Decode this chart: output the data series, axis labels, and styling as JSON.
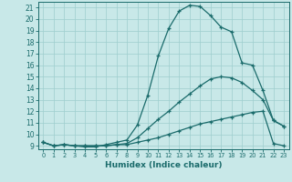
{
  "xlabel": "Humidex (Indice chaleur)",
  "xlim": [
    -0.5,
    23.5
  ],
  "ylim": [
    8.7,
    21.5
  ],
  "yticks": [
    9,
    10,
    11,
    12,
    13,
    14,
    15,
    16,
    17,
    18,
    19,
    20,
    21
  ],
  "xticks": [
    0,
    1,
    2,
    3,
    4,
    5,
    6,
    7,
    8,
    9,
    10,
    11,
    12,
    13,
    14,
    15,
    16,
    17,
    18,
    19,
    20,
    21,
    22,
    23
  ],
  "bg_color": "#c8e8e8",
  "line_color": "#1a6b6b",
  "grid_color": "#9ecece",
  "line1_x": [
    0,
    1,
    2,
    3,
    4,
    5,
    6,
    7,
    8,
    9,
    10,
    11,
    12,
    13,
    14,
    15,
    16,
    17,
    18,
    19,
    20,
    21,
    22,
    23
  ],
  "line1_y": [
    9.3,
    9.0,
    9.1,
    9.0,
    9.0,
    9.0,
    9.0,
    9.1,
    9.1,
    9.3,
    9.5,
    9.7,
    10.0,
    10.3,
    10.6,
    10.9,
    11.1,
    11.3,
    11.5,
    11.7,
    11.9,
    12.0,
    9.2,
    9.0
  ],
  "line2_x": [
    0,
    1,
    2,
    3,
    4,
    5,
    6,
    7,
    8,
    9,
    10,
    11,
    12,
    13,
    14,
    15,
    16,
    17,
    18,
    19,
    20,
    21,
    22,
    23
  ],
  "line2_y": [
    9.3,
    9.0,
    9.1,
    9.0,
    9.0,
    9.0,
    9.0,
    9.1,
    9.2,
    9.7,
    10.5,
    11.3,
    12.0,
    12.8,
    13.5,
    14.2,
    14.8,
    15.0,
    14.9,
    14.5,
    13.8,
    13.0,
    11.2,
    10.7
  ],
  "line3_x": [
    0,
    1,
    2,
    3,
    4,
    5,
    6,
    7,
    8,
    9,
    10,
    11,
    12,
    13,
    14,
    15,
    16,
    17,
    18,
    19,
    20,
    21,
    22,
    23
  ],
  "line3_y": [
    9.3,
    9.0,
    9.1,
    9.0,
    8.9,
    8.9,
    9.1,
    9.3,
    9.5,
    10.8,
    13.4,
    16.8,
    19.2,
    20.7,
    21.2,
    21.1,
    20.3,
    19.3,
    18.9,
    16.2,
    16.0,
    13.8,
    11.2,
    10.7
  ]
}
